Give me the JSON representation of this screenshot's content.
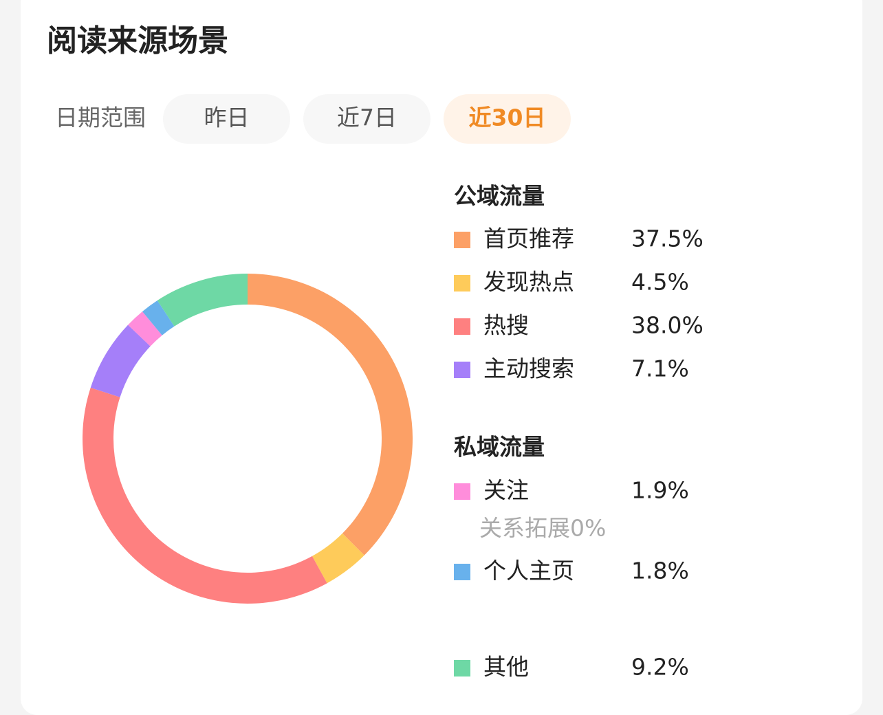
{
  "title": "阅读来源场景",
  "date_range": {
    "label": "日期范围",
    "options": [
      "昨日",
      "近7日",
      "近30日"
    ],
    "selected": 2
  },
  "groups": [
    "公域流量",
    "私域流量"
  ],
  "notes": [
    "关系拓展0%"
  ],
  "chart_data": {
    "type": "pie",
    "categories": [
      "首页推荐",
      "发现热点",
      "热搜",
      "主动搜索",
      "关注",
      "个人主页",
      "其他"
    ],
    "values": [
      37.5,
      4.5,
      38.0,
      7.1,
      1.9,
      1.8,
      9.2
    ],
    "value_labels": [
      "37.5%",
      "4.5%",
      "38.0%",
      "7.1%",
      "1.9%",
      "1.8%",
      "9.2%"
    ],
    "colors": [
      "#fca066",
      "#fecb5a",
      "#fe8080",
      "#a57ff9",
      "#ff8ddb",
      "#68b1ec",
      "#6ed8a5"
    ]
  }
}
